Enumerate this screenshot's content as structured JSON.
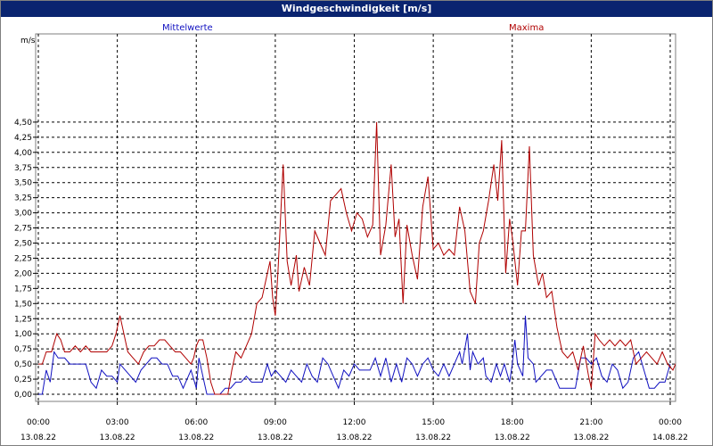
{
  "window": {
    "title": "Windgeschwindigkeit [m/s]"
  },
  "colors": {
    "mittelwerte": "#1010c0",
    "maxima": "#b00000",
    "title_bg": "#0a2470"
  },
  "chart_data": {
    "type": "line",
    "title": "Windgeschwindigkeit [m/s]",
    "ylabel": "m/s",
    "ylim": [
      0,
      4.75
    ],
    "y_ticks": [
      "0,00",
      "0,25",
      "0,50",
      "0,75",
      "1,00",
      "1,25",
      "1,50",
      "1,75",
      "2,00",
      "2,25",
      "2,50",
      "2,75",
      "3,00",
      "3,25",
      "3,50",
      "3,75",
      "4,00",
      "4,25",
      "4,50"
    ],
    "xlim": [
      0,
      24
    ],
    "x_ticks": [
      {
        "x": 0,
        "time": "00:00",
        "date": "13.08.22"
      },
      {
        "x": 3,
        "time": "03:00",
        "date": "13.08.22"
      },
      {
        "x": 6,
        "time": "06:00",
        "date": "13.08.22"
      },
      {
        "x": 9,
        "time": "09:00",
        "date": "13.08.22"
      },
      {
        "x": 12,
        "time": "12:00",
        "date": "13.08.22"
      },
      {
        "x": 15,
        "time": "15:00",
        "date": "13.08.22"
      },
      {
        "x": 18,
        "time": "18:00",
        "date": "13.08.22"
      },
      {
        "x": 21,
        "time": "21:00",
        "date": "13.08.22"
      },
      {
        "x": 24,
        "time": "00:00",
        "date": "14.08.22"
      }
    ],
    "grid": true,
    "series": [
      {
        "name": "Mittelwerte",
        "color": "#1010c0",
        "legend_position": "top-left",
        "points": [
          [
            0,
            0
          ],
          [
            0.15,
            0
          ],
          [
            0.3,
            0.4
          ],
          [
            0.45,
            0.2
          ],
          [
            0.6,
            0.7
          ],
          [
            0.75,
            0.6
          ],
          [
            1.0,
            0.6
          ],
          [
            1.2,
            0.5
          ],
          [
            1.4,
            0.5
          ],
          [
            1.6,
            0.5
          ],
          [
            1.8,
            0.5
          ],
          [
            2.0,
            0.2
          ],
          [
            2.2,
            0.1
          ],
          [
            2.4,
            0.4
          ],
          [
            2.6,
            0.3
          ],
          [
            2.8,
            0.3
          ],
          [
            3.0,
            0.2
          ],
          [
            3.1,
            0.5
          ],
          [
            3.3,
            0.4
          ],
          [
            3.5,
            0.3
          ],
          [
            3.7,
            0.2
          ],
          [
            3.9,
            0.4
          ],
          [
            4.1,
            0.5
          ],
          [
            4.3,
            0.6
          ],
          [
            4.5,
            0.6
          ],
          [
            4.7,
            0.5
          ],
          [
            4.9,
            0.5
          ],
          [
            5.1,
            0.3
          ],
          [
            5.3,
            0.3
          ],
          [
            5.5,
            0.1
          ],
          [
            5.6,
            0.2
          ],
          [
            5.8,
            0.4
          ],
          [
            6.0,
            0.1
          ],
          [
            6.1,
            0.6
          ],
          [
            6.25,
            0.3
          ],
          [
            6.4,
            0
          ],
          [
            6.7,
            0
          ],
          [
            6.9,
            0
          ],
          [
            7.1,
            0.1
          ],
          [
            7.3,
            0.1
          ],
          [
            7.5,
            0.2
          ],
          [
            7.7,
            0.2
          ],
          [
            7.9,
            0.3
          ],
          [
            8.1,
            0.2
          ],
          [
            8.3,
            0.2
          ],
          [
            8.5,
            0.2
          ],
          [
            8.7,
            0.5
          ],
          [
            8.85,
            0.3
          ],
          [
            9.0,
            0.4
          ],
          [
            9.2,
            0.3
          ],
          [
            9.4,
            0.2
          ],
          [
            9.6,
            0.4
          ],
          [
            9.8,
            0.3
          ],
          [
            10.0,
            0.2
          ],
          [
            10.2,
            0.5
          ],
          [
            10.4,
            0.3
          ],
          [
            10.6,
            0.2
          ],
          [
            10.8,
            0.6
          ],
          [
            11.0,
            0.5
          ],
          [
            11.2,
            0.3
          ],
          [
            11.4,
            0.1
          ],
          [
            11.6,
            0.4
          ],
          [
            11.8,
            0.3
          ],
          [
            12.0,
            0.5
          ],
          [
            12.2,
            0.4
          ],
          [
            12.4,
            0.4
          ],
          [
            12.6,
            0.4
          ],
          [
            12.8,
            0.6
          ],
          [
            13.0,
            0.3
          ],
          [
            13.2,
            0.6
          ],
          [
            13.4,
            0.2
          ],
          [
            13.6,
            0.5
          ],
          [
            13.8,
            0.2
          ],
          [
            14.0,
            0.6
          ],
          [
            14.2,
            0.5
          ],
          [
            14.4,
            0.3
          ],
          [
            14.6,
            0.5
          ],
          [
            14.8,
            0.6
          ],
          [
            15.0,
            0.4
          ],
          [
            15.2,
            0.3
          ],
          [
            15.4,
            0.5
          ],
          [
            15.6,
            0.3
          ],
          [
            15.8,
            0.5
          ],
          [
            16.0,
            0.7
          ],
          [
            16.1,
            0.5
          ],
          [
            16.3,
            1.0
          ],
          [
            16.4,
            0.4
          ],
          [
            16.5,
            0.7
          ],
          [
            16.7,
            0.5
          ],
          [
            16.9,
            0.6
          ],
          [
            17.0,
            0.3
          ],
          [
            17.2,
            0.2
          ],
          [
            17.4,
            0.5
          ],
          [
            17.55,
            0.3
          ],
          [
            17.7,
            0.5
          ],
          [
            17.9,
            0.2
          ],
          [
            18.0,
            0.5
          ],
          [
            18.1,
            0.9
          ],
          [
            18.2,
            0.5
          ],
          [
            18.4,
            0.3
          ],
          [
            18.5,
            1.3
          ],
          [
            18.6,
            0.6
          ],
          [
            18.8,
            0.5
          ],
          [
            18.9,
            0.2
          ],
          [
            19.1,
            0.3
          ],
          [
            19.3,
            0.4
          ],
          [
            19.5,
            0.4
          ],
          [
            19.8,
            0.1
          ],
          [
            20.1,
            0.1
          ],
          [
            20.4,
            0.1
          ],
          [
            20.6,
            0.6
          ],
          [
            20.8,
            0.6
          ],
          [
            21.0,
            0.5
          ],
          [
            21.2,
            0.6
          ],
          [
            21.4,
            0.3
          ],
          [
            21.6,
            0.2
          ],
          [
            21.8,
            0.5
          ],
          [
            22.0,
            0.4
          ],
          [
            22.2,
            0.1
          ],
          [
            22.4,
            0.2
          ],
          [
            22.6,
            0.6
          ],
          [
            22.8,
            0.7
          ],
          [
            23.0,
            0.4
          ],
          [
            23.2,
            0.1
          ],
          [
            23.4,
            0.1
          ],
          [
            23.6,
            0.2
          ],
          [
            23.8,
            0.2
          ],
          [
            24.0,
            0.5
          ]
        ]
      },
      {
        "name": "Maxima",
        "color": "#b00000",
        "legend_position": "top-right",
        "points": [
          [
            0,
            0.5
          ],
          [
            0.15,
            0.5
          ],
          [
            0.3,
            0.7
          ],
          [
            0.5,
            0.7
          ],
          [
            0.7,
            1.0
          ],
          [
            0.85,
            0.9
          ],
          [
            1.0,
            0.7
          ],
          [
            1.2,
            0.7
          ],
          [
            1.4,
            0.8
          ],
          [
            1.6,
            0.7
          ],
          [
            1.8,
            0.8
          ],
          [
            2.0,
            0.7
          ],
          [
            2.2,
            0.7
          ],
          [
            2.4,
            0.7
          ],
          [
            2.6,
            0.7
          ],
          [
            2.8,
            0.8
          ],
          [
            2.95,
            1.0
          ],
          [
            3.1,
            1.3
          ],
          [
            3.25,
            1.0
          ],
          [
            3.4,
            0.7
          ],
          [
            3.6,
            0.6
          ],
          [
            3.8,
            0.5
          ],
          [
            4.0,
            0.7
          ],
          [
            4.2,
            0.8
          ],
          [
            4.4,
            0.8
          ],
          [
            4.6,
            0.9
          ],
          [
            4.8,
            0.9
          ],
          [
            5.0,
            0.8
          ],
          [
            5.2,
            0.7
          ],
          [
            5.4,
            0.7
          ],
          [
            5.6,
            0.6
          ],
          [
            5.8,
            0.5
          ],
          [
            5.9,
            0.6
          ],
          [
            6.0,
            0.8
          ],
          [
            6.1,
            0.9
          ],
          [
            6.25,
            0.9
          ],
          [
            6.4,
            0.6
          ],
          [
            6.55,
            0.2
          ],
          [
            6.7,
            0
          ],
          [
            7.0,
            0
          ],
          [
            7.2,
            0
          ],
          [
            7.35,
            0.4
          ],
          [
            7.5,
            0.7
          ],
          [
            7.7,
            0.6
          ],
          [
            7.9,
            0.8
          ],
          [
            8.1,
            1.0
          ],
          [
            8.3,
            1.5
          ],
          [
            8.5,
            1.6
          ],
          [
            8.7,
            2.0
          ],
          [
            8.8,
            2.2
          ],
          [
            8.9,
            1.6
          ],
          [
            9.0,
            1.3
          ],
          [
            9.1,
            2.0
          ],
          [
            9.3,
            3.8
          ],
          [
            9.45,
            2.2
          ],
          [
            9.6,
            1.8
          ],
          [
            9.8,
            2.3
          ],
          [
            9.9,
            1.7
          ],
          [
            10.1,
            2.1
          ],
          [
            10.3,
            1.8
          ],
          [
            10.5,
            2.7
          ],
          [
            10.7,
            2.5
          ],
          [
            10.9,
            2.3
          ],
          [
            11.1,
            3.2
          ],
          [
            11.3,
            3.3
          ],
          [
            11.5,
            3.4
          ],
          [
            11.7,
            3.0
          ],
          [
            11.9,
            2.7
          ],
          [
            12.1,
            3.0
          ],
          [
            12.3,
            2.9
          ],
          [
            12.5,
            2.6
          ],
          [
            12.7,
            2.8
          ],
          [
            12.85,
            4.5
          ],
          [
            13.0,
            2.3
          ],
          [
            13.2,
            2.8
          ],
          [
            13.4,
            3.8
          ],
          [
            13.55,
            2.6
          ],
          [
            13.7,
            2.9
          ],
          [
            13.85,
            1.5
          ],
          [
            14.0,
            2.8
          ],
          [
            14.2,
            2.3
          ],
          [
            14.4,
            1.9
          ],
          [
            14.6,
            3.1
          ],
          [
            14.8,
            3.6
          ],
          [
            15.0,
            2.4
          ],
          [
            15.2,
            2.5
          ],
          [
            15.4,
            2.3
          ],
          [
            15.6,
            2.4
          ],
          [
            15.8,
            2.3
          ],
          [
            16.0,
            3.1
          ],
          [
            16.2,
            2.7
          ],
          [
            16.4,
            1.7
          ],
          [
            16.6,
            1.5
          ],
          [
            16.75,
            2.5
          ],
          [
            16.9,
            2.7
          ],
          [
            17.1,
            3.2
          ],
          [
            17.3,
            3.8
          ],
          [
            17.45,
            3.2
          ],
          [
            17.6,
            4.2
          ],
          [
            17.75,
            2.0
          ],
          [
            17.9,
            2.9
          ],
          [
            18.0,
            2.6
          ],
          [
            18.2,
            1.8
          ],
          [
            18.35,
            2.7
          ],
          [
            18.5,
            2.7
          ],
          [
            18.65,
            4.1
          ],
          [
            18.8,
            2.3
          ],
          [
            19.0,
            1.8
          ],
          [
            19.15,
            2.0
          ],
          [
            19.3,
            1.6
          ],
          [
            19.5,
            1.7
          ],
          [
            19.7,
            1.1
          ],
          [
            19.9,
            0.7
          ],
          [
            20.1,
            0.6
          ],
          [
            20.3,
            0.7
          ],
          [
            20.5,
            0.4
          ],
          [
            20.7,
            0.8
          ],
          [
            20.9,
            0.3
          ],
          [
            21.0,
            0.1
          ],
          [
            21.15,
            1.0
          ],
          [
            21.3,
            0.9
          ],
          [
            21.5,
            0.8
          ],
          [
            21.7,
            0.9
          ],
          [
            21.9,
            0.8
          ],
          [
            22.1,
            0.9
          ],
          [
            22.3,
            0.8
          ],
          [
            22.5,
            0.9
          ],
          [
            22.7,
            0.5
          ],
          [
            22.9,
            0.6
          ],
          [
            23.1,
            0.7
          ],
          [
            23.3,
            0.6
          ],
          [
            23.5,
            0.5
          ],
          [
            23.7,
            0.7
          ],
          [
            23.9,
            0.5
          ],
          [
            24.1,
            0.4
          ],
          [
            24.3,
            0.6
          ],
          [
            24.5,
            0.6
          ],
          [
            24.7,
            0.6
          ],
          [
            24.9,
            0.6
          ],
          [
            25.0,
            0.6
          ]
        ]
      }
    ]
  }
}
